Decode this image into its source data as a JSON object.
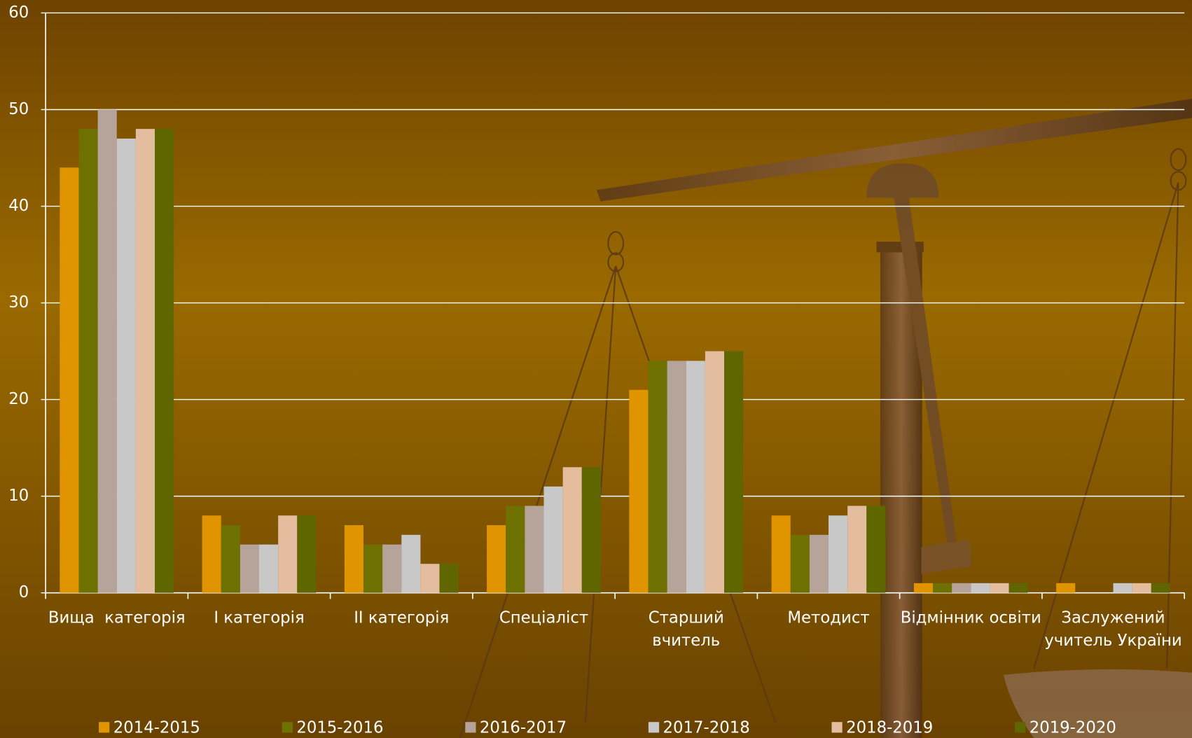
{
  "chart_data": {
    "type": "bar",
    "categories": [
      "Вища  категорія",
      "І категорія",
      "ІІ категорія",
      "Спеціаліст",
      "Старший\nвчитель",
      "Методист",
      "Відмінник освіти",
      "Заслужений\nучитель України"
    ],
    "series": [
      {
        "name": "2014-2015",
        "color": "#E09400",
        "values": [
          44,
          8,
          7,
          7,
          21,
          8,
          1,
          1
        ]
      },
      {
        "name": "2015-2016",
        "color": "#6E7000",
        "values": [
          48,
          7,
          5,
          9,
          24,
          6,
          1,
          0
        ]
      },
      {
        "name": "2016-2017",
        "color": "#B6A49A",
        "values": [
          50,
          5,
          5,
          9,
          24,
          6,
          1,
          0
        ]
      },
      {
        "name": "2017-2018",
        "color": "#C8C8C8",
        "values": [
          47,
          5,
          6,
          11,
          24,
          8,
          1,
          1
        ]
      },
      {
        "name": "2018-2019",
        "color": "#E4BC9E",
        "values": [
          48,
          8,
          3,
          13,
          25,
          9,
          1,
          1
        ]
      },
      {
        "name": "2019-2020",
        "color": "#5F6600",
        "values": [
          48,
          8,
          3,
          13,
          25,
          9,
          1,
          1
        ]
      }
    ],
    "ylim": [
      0,
      60
    ],
    "yticks": [
      0,
      10,
      20,
      30,
      40,
      50,
      60
    ],
    "grid": true,
    "legend": "bottom"
  }
}
